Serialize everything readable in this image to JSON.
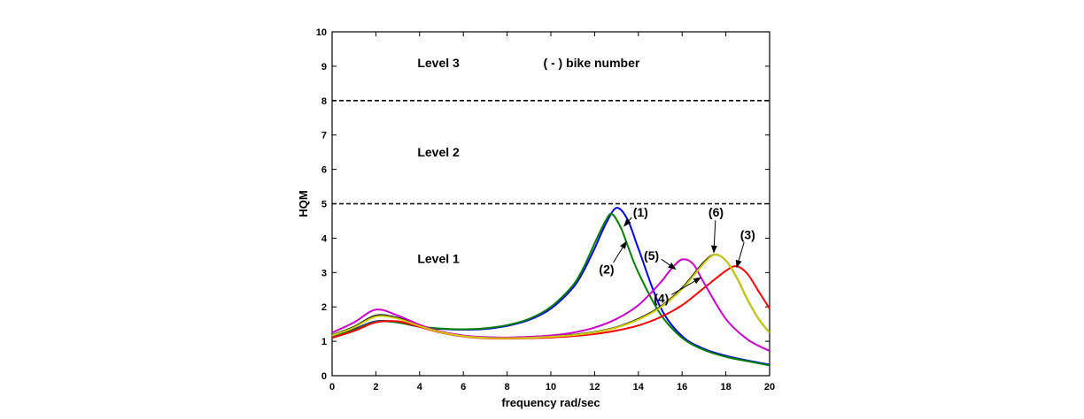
{
  "chart_data": {
    "type": "line",
    "xlabel": "frequency rad/sec",
    "ylabel": "HQM",
    "xlim": [
      0,
      20
    ],
    "ylim": [
      0,
      10
    ],
    "xticks": [
      0,
      2,
      4,
      6,
      8,
      10,
      12,
      14,
      16,
      18,
      20
    ],
    "yticks": [
      0,
      1,
      2,
      3,
      4,
      5,
      6,
      7,
      8,
      9,
      10
    ],
    "grid": false,
    "thresholds": [
      {
        "y": 5,
        "style": "dashed"
      },
      {
        "y": 8,
        "style": "dashed"
      }
    ],
    "level_labels": [
      {
        "text": "Level 1",
        "x": 3.9,
        "y": 3.4
      },
      {
        "text": "Level 2",
        "x": 3.9,
        "y": 6.5
      },
      {
        "text": "Level 3",
        "x": 3.9,
        "y": 9.1
      }
    ],
    "legend_note": "( - ) bike number",
    "series": [
      {
        "name": "(1)",
        "color": "#0000ff",
        "x": [
          0,
          1,
          2,
          3,
          4,
          5,
          6,
          7,
          8,
          9,
          10,
          11,
          11.5,
          12,
          12.5,
          13,
          13.5,
          14,
          15,
          16,
          17,
          18,
          19,
          20
        ],
        "y": [
          1.15,
          1.35,
          1.58,
          1.55,
          1.42,
          1.36,
          1.34,
          1.36,
          1.45,
          1.62,
          1.95,
          2.55,
          3.05,
          3.7,
          4.4,
          4.88,
          4.55,
          3.7,
          2.0,
          1.15,
          0.78,
          0.58,
          0.44,
          0.32
        ]
      },
      {
        "name": "(2)",
        "color": "#008000",
        "x": [
          0,
          1,
          2,
          3,
          4,
          5,
          6,
          7,
          8,
          9,
          10,
          11,
          11.5,
          12,
          12.5,
          12.8,
          13.2,
          13.5,
          14,
          15,
          16,
          17,
          18,
          19,
          20
        ],
        "y": [
          1.12,
          1.33,
          1.57,
          1.55,
          1.43,
          1.37,
          1.35,
          1.38,
          1.47,
          1.65,
          2.0,
          2.62,
          3.15,
          3.85,
          4.5,
          4.7,
          4.3,
          3.8,
          3.0,
          1.8,
          1.1,
          0.75,
          0.55,
          0.42,
          0.3
        ]
      },
      {
        "name": "(3)",
        "color": "#ff0000",
        "x": [
          0,
          1,
          2,
          3,
          4,
          5,
          6,
          7,
          8,
          9,
          10,
          11,
          12,
          13,
          14,
          15,
          16,
          17,
          18,
          18.5,
          19,
          19.5,
          20
        ],
        "y": [
          1.1,
          1.3,
          1.55,
          1.58,
          1.42,
          1.25,
          1.14,
          1.09,
          1.08,
          1.09,
          1.11,
          1.15,
          1.21,
          1.31,
          1.46,
          1.7,
          2.05,
          2.55,
          3.05,
          3.18,
          2.95,
          2.45,
          1.95
        ]
      },
      {
        "name": "(4)",
        "color": "#000000",
        "x": [
          0,
          1,
          2,
          3,
          4,
          5,
          6,
          7,
          8,
          9,
          10,
          11,
          12,
          13,
          14,
          15,
          16,
          17,
          17.5,
          18,
          18.5,
          19,
          19.5,
          20
        ],
        "y": [
          1.18,
          1.42,
          1.75,
          1.68,
          1.45,
          1.27,
          1.16,
          1.11,
          1.1,
          1.11,
          1.14,
          1.19,
          1.27,
          1.41,
          1.65,
          2.0,
          2.55,
          3.3,
          3.52,
          3.35,
          2.85,
          2.2,
          1.65,
          1.25
        ]
      },
      {
        "name": "(5)",
        "color": "#cc00cc",
        "x": [
          0,
          1,
          2,
          3,
          4,
          5,
          6,
          7,
          8,
          9,
          10,
          11,
          12,
          13,
          14,
          15,
          15.5,
          16,
          16.5,
          17,
          18,
          19,
          20
        ],
        "y": [
          1.25,
          1.55,
          1.92,
          1.75,
          1.48,
          1.28,
          1.17,
          1.12,
          1.11,
          1.13,
          1.17,
          1.25,
          1.4,
          1.65,
          2.05,
          2.7,
          3.1,
          3.38,
          3.25,
          2.7,
          1.65,
          1.05,
          0.72
        ]
      },
      {
        "name": "(6)",
        "color": "#cccc00",
        "x": [
          0,
          1,
          2,
          3,
          4,
          5,
          6,
          7,
          8,
          9,
          10,
          11,
          12,
          13,
          14,
          15,
          16,
          17,
          17.5,
          18,
          18.5,
          19,
          19.5,
          20
        ],
        "y": [
          1.17,
          1.4,
          1.72,
          1.66,
          1.44,
          1.26,
          1.15,
          1.1,
          1.09,
          1.1,
          1.13,
          1.18,
          1.26,
          1.4,
          1.63,
          1.98,
          2.52,
          3.27,
          3.52,
          3.35,
          2.85,
          2.2,
          1.65,
          1.25
        ]
      }
    ],
    "annotations": [
      {
        "text": "(1)",
        "text_x": 14.1,
        "text_y": 4.75,
        "arrow_x": 13.35,
        "arrow_y": 4.35
      },
      {
        "text": "(2)",
        "text_x": 12.55,
        "text_y": 3.1,
        "arrow_x": 13.45,
        "arrow_y": 3.9
      },
      {
        "text": "(5)",
        "text_x": 14.6,
        "text_y": 3.5,
        "arrow_x": 15.7,
        "arrow_y": 3.1
      },
      {
        "text": "(6)",
        "text_x": 17.55,
        "text_y": 4.75,
        "arrow_x": 17.45,
        "arrow_y": 3.58
      },
      {
        "text": "(3)",
        "text_x": 19.0,
        "text_y": 4.1,
        "arrow_x": 18.5,
        "arrow_y": 3.15
      },
      {
        "text": "(4)",
        "text_x": 15.05,
        "text_y": 2.25,
        "arrow_x": 16.85,
        "arrow_y": 2.85
      }
    ]
  }
}
